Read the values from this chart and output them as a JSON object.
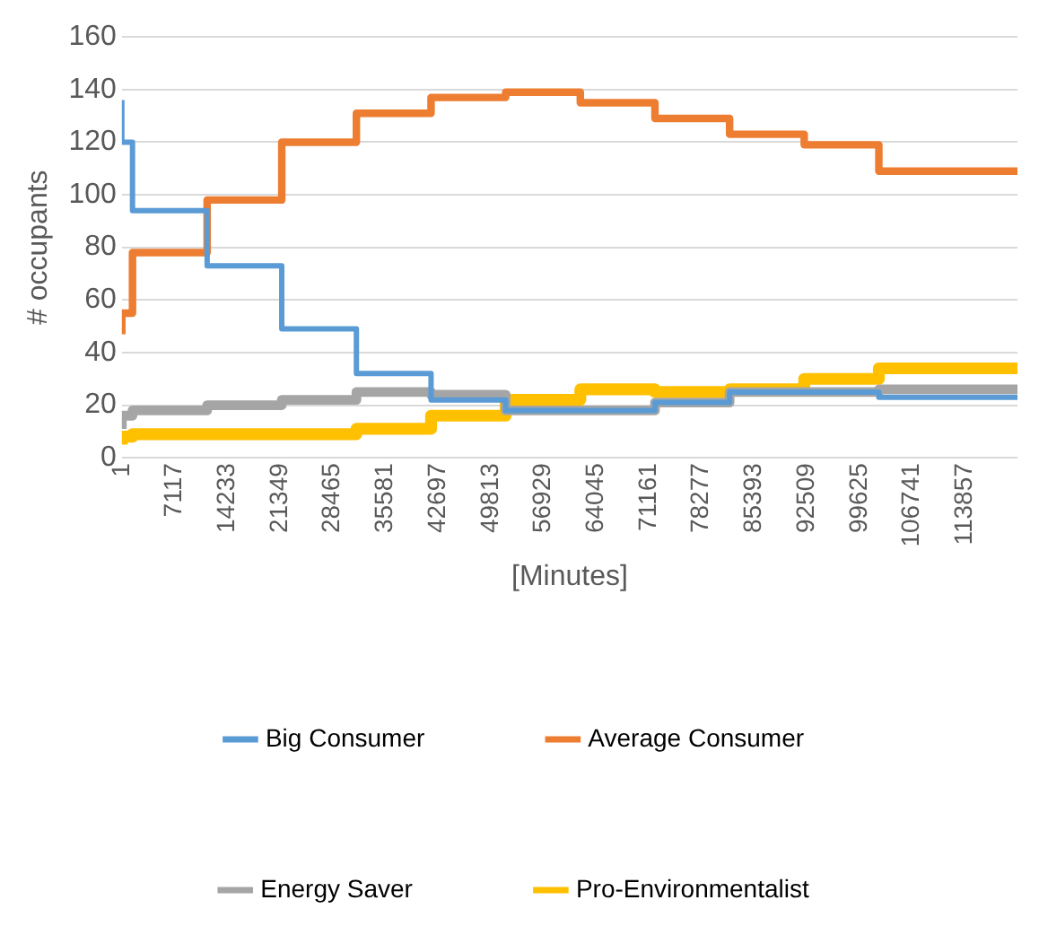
{
  "chart_data": {
    "type": "step",
    "xlabel": "[Minutes]",
    "ylabel": "# occupants",
    "x": [
      1,
      1441,
      11521,
      21601,
      31681,
      41761,
      51841,
      61921,
      72001,
      82081,
      92161,
      102241,
      112321,
      120960
    ],
    "xlim": [
      1,
      120960
    ],
    "xticks": [
      1,
      7117,
      14233,
      21349,
      28465,
      35581,
      42697,
      49813,
      56929,
      64045,
      71161,
      78277,
      85393,
      92509,
      99625,
      106741,
      113857
    ],
    "ylim": [
      0,
      160
    ],
    "yticks": [
      0,
      20,
      40,
      60,
      80,
      100,
      120,
      140,
      160
    ],
    "grid": "y",
    "legend": "bottom",
    "line_style": "solid",
    "marker": "none",
    "series": [
      {
        "name": "Big Consumer",
        "color": "#5b9bd5",
        "values": [
          136,
          120,
          94,
          73,
          49,
          32,
          22,
          18,
          18,
          21,
          25,
          25,
          23,
          23
        ]
      },
      {
        "name": "Average Consumer",
        "color": "#ed7d31",
        "values": [
          47,
          55,
          78,
          98,
          120,
          131,
          137,
          139,
          135,
          129,
          123,
          119,
          109,
          109
        ]
      },
      {
        "name": "Energy Saver",
        "color": "#a5a5a5",
        "values": [
          11,
          16,
          18,
          20,
          22,
          25,
          24,
          18,
          18,
          21,
          25,
          25,
          26,
          26
        ]
      },
      {
        "name": "Pro-Environmentalist",
        "color": "#ffc000",
        "values": [
          5,
          8,
          9,
          9,
          9,
          11,
          16,
          22,
          26,
          25,
          26,
          30,
          34,
          34
        ]
      }
    ]
  }
}
